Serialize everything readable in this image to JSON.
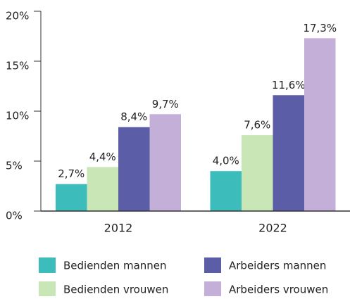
{
  "chart_data": {
    "type": "bar",
    "categories": [
      "2012",
      "2022"
    ],
    "series": [
      {
        "name": "Bedienden mannen",
        "color": "#3dbcbc",
        "values": [
          2.7,
          4.0
        ],
        "value_labels": [
          "2,7%",
          "4,0%"
        ]
      },
      {
        "name": "Bedienden vrouwen",
        "color": "#c9e6b6",
        "values": [
          4.4,
          7.6
        ],
        "value_labels": [
          "4,4%",
          "7,6%"
        ]
      },
      {
        "name": "Arbeiders mannen",
        "color": "#5b5da6",
        "values": [
          8.4,
          11.6
        ],
        "value_labels": [
          "8,4%",
          "11,6%"
        ]
      },
      {
        "name": "Arbeiders vrouwen",
        "color": "#c4afd8",
        "values": [
          9.7,
          17.3
        ],
        "value_labels": [
          "9,7%",
          "17,3%"
        ]
      }
    ],
    "ylim": [
      0,
      20
    ],
    "yticks": [
      {
        "value": 0,
        "label": "0%"
      },
      {
        "value": 5,
        "label": "5%"
      },
      {
        "value": 10,
        "label": "10%"
      },
      {
        "value": 15,
        "label": "15%"
      },
      {
        "value": 20,
        "label": "20%"
      }
    ]
  }
}
